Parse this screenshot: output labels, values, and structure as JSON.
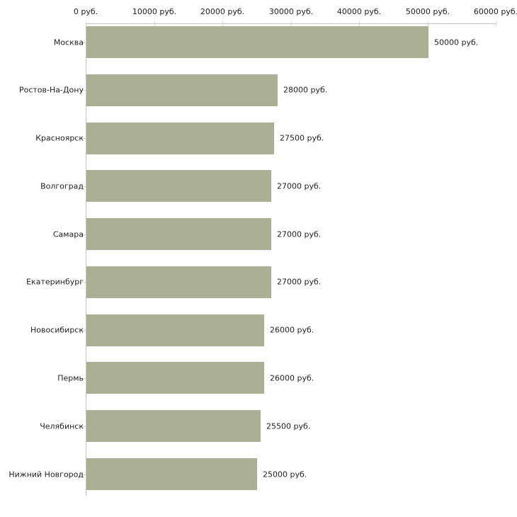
{
  "chart_data": {
    "type": "bar",
    "orientation": "horizontal",
    "title": "",
    "xlabel": "",
    "ylabel": "",
    "unit_suffix": " руб.",
    "categories": [
      "Москва",
      "Ростов-На-Дону",
      "Красноярск",
      "Волгоград",
      "Самара",
      "Екатеринбург",
      "Новосибирск",
      "Пермь",
      "Челябинск",
      "Нижний Новгород"
    ],
    "values": [
      50000,
      28000,
      27500,
      27000,
      27000,
      27000,
      26000,
      26000,
      25500,
      25000
    ],
    "bar_labels": [
      "50000 руб.",
      "28000 руб.",
      "27500 руб.",
      "27000 руб.",
      "27000 руб.",
      "27000 руб.",
      "26000 руб.",
      "26000 руб.",
      "25500 руб.",
      "25000 руб."
    ],
    "xlim": [
      0,
      60000
    ],
    "x_ticks": [
      0,
      10000,
      20000,
      30000,
      40000,
      50000,
      60000
    ],
    "x_tick_labels": [
      "0 руб.",
      "10000 руб.",
      "20000 руб.",
      "30000 руб.",
      "40000 руб.",
      "50000 руб.",
      "60000 руб."
    ],
    "axis_position": "top",
    "grid": false,
    "legend_position": "none",
    "colors": {
      "bar_fill": "#abb095",
      "axis_line": "#c4c4c4",
      "tick_mark": "#d8d9b3",
      "text": "#222222",
      "background": "#ffffff"
    }
  }
}
